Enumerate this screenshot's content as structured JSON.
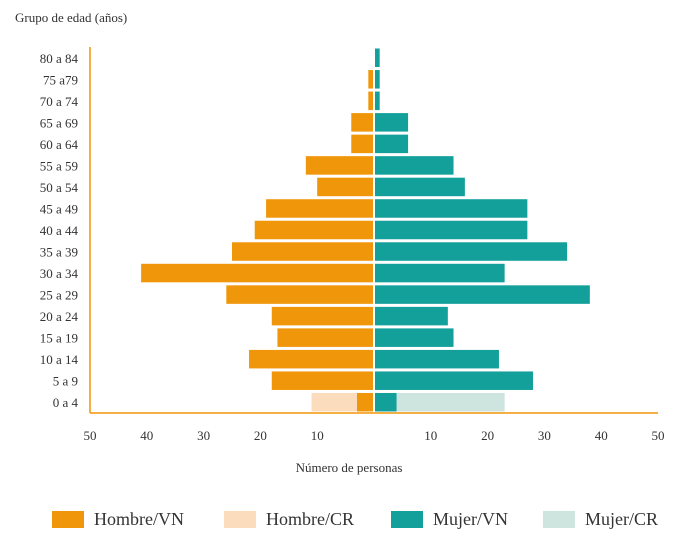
{
  "chart_data": {
    "type": "bar",
    "orientation": "horizontal-population-pyramid",
    "ylabel": "Grupo de edad (años)",
    "xlabel": "Número de personas",
    "xlim": [
      -50,
      50
    ],
    "x_ticks": [
      -50,
      -40,
      -30,
      -20,
      -10,
      10,
      20,
      30,
      40,
      50
    ],
    "x_tick_labels": [
      "50",
      "40",
      "30",
      "20",
      "10",
      "10",
      "20",
      "30",
      "40",
      "50"
    ],
    "categories": [
      "0 a 4",
      "5 a 9",
      "10 a 14",
      "15 a 19",
      "20 a 24",
      "25 a 29",
      "30 a 34",
      "35 a 39",
      "40 a 44",
      "45 a 49",
      "50 a 54",
      "55 a 59",
      "60 a 64",
      "65 a 69",
      "70 a 74",
      "75 a79",
      "80 a 84"
    ],
    "series": [
      {
        "name": "Hombre/VN",
        "side": "left",
        "color": "#F0960A",
        "values": [
          3,
          18,
          22,
          17,
          18,
          26,
          41,
          25,
          21,
          19,
          10,
          12,
          4,
          4,
          1,
          1,
          0
        ]
      },
      {
        "name": "Hombre/CR",
        "side": "left",
        "color": "#FBDCBC",
        "values": [
          8,
          0,
          0,
          0,
          0,
          0,
          0,
          0,
          0,
          0,
          0,
          0,
          0,
          0,
          0,
          0,
          0
        ]
      },
      {
        "name": "Mujer/VN",
        "side": "right",
        "color": "#13A09A",
        "values": [
          4,
          28,
          22,
          14,
          13,
          38,
          23,
          34,
          27,
          27,
          16,
          14,
          6,
          6,
          1,
          1,
          1
        ]
      },
      {
        "name": "Mujer/CR",
        "side": "right",
        "color": "#CDE4DF",
        "values": [
          19,
          0,
          0,
          0,
          0,
          0,
          0,
          0,
          0,
          0,
          0,
          0,
          0,
          0,
          0,
          0,
          0
        ]
      }
    ],
    "axis_color": "#F0960A",
    "grid": false,
    "legend_position": "bottom"
  }
}
